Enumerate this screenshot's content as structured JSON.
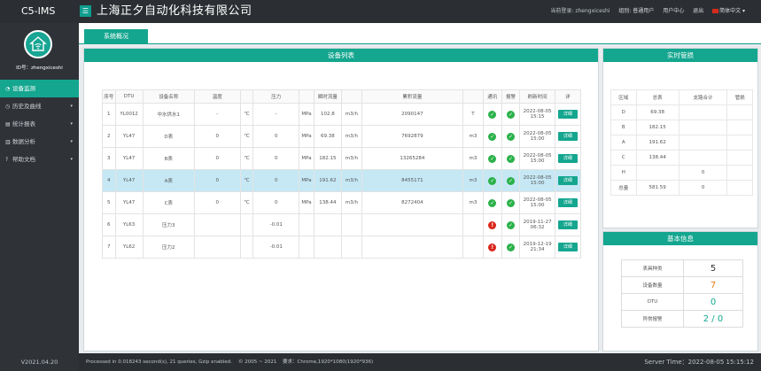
{
  "app": {
    "brand": "C5-IMS",
    "company": "上海正夕自动化科技有限公司",
    "menu_icon": "hamburger-icon"
  },
  "user_bar": {
    "current_login": "当前登录: zhengxiceshi",
    "role": "组别: 普通用户",
    "user_center": "用户中心",
    "logout": "退出",
    "language": "简体中文 ▾"
  },
  "sidebar": {
    "user_line": "ID号：zhengxiceshi",
    "version": "V2021.04.20",
    "items": [
      {
        "icon": "gauge-icon",
        "label": "设备监测",
        "active": true,
        "caret": ""
      },
      {
        "icon": "history-icon",
        "label": "历史及曲线",
        "caret": "▾"
      },
      {
        "icon": "report-icon",
        "label": "统计报表",
        "caret": "▾"
      },
      {
        "icon": "chart-icon",
        "label": "数据分析",
        "caret": "▾"
      },
      {
        "icon": "help-icon",
        "label": "帮助文档",
        "caret": "▾"
      }
    ]
  },
  "tab": {
    "label": "系统概况"
  },
  "device_panel": {
    "title": "设备列表",
    "headers": [
      "序号",
      "DTU",
      "设备名称",
      "温度",
      "",
      "压力",
      "",
      "瞬时流量",
      "",
      "累积流量",
      "",
      "通讯",
      "报警",
      "刷新时间",
      "详"
    ],
    "detail_label": "详细",
    "rows": [
      {
        "no": "1",
        "dtu": "YL0012",
        "name": "中水供水1",
        "temp": "-",
        "temp_unit": "℃",
        "pressure": "-",
        "p_unit": "MPa",
        "flow": "102.8",
        "flow_unit": "m3/h",
        "total": "2090147",
        "total_unit": "T",
        "comm": "ok",
        "alarm": "ok",
        "time1": "2022-08-05",
        "time2": "15:15",
        "hl": false
      },
      {
        "no": "2",
        "dtu": "YL47",
        "name": "D表",
        "temp": "0",
        "temp_unit": "℃",
        "pressure": "0",
        "p_unit": "MPa",
        "flow": "69.38",
        "flow_unit": "m3/h",
        "total": "7692879",
        "total_unit": "m3",
        "comm": "ok",
        "alarm": "ok",
        "time1": "2022-08-05",
        "time2": "15:00",
        "hl": false
      },
      {
        "no": "3",
        "dtu": "YL47",
        "name": "B表",
        "temp": "0",
        "temp_unit": "℃",
        "pressure": "0",
        "p_unit": "MPa",
        "flow": "182.15",
        "flow_unit": "m3/h",
        "total": "13265284",
        "total_unit": "m3",
        "comm": "ok",
        "alarm": "ok",
        "time1": "2022-08-05",
        "time2": "15:00",
        "hl": false
      },
      {
        "no": "4",
        "dtu": "YL47",
        "name": "A表",
        "temp": "0",
        "temp_unit": "℃",
        "pressure": "0",
        "p_unit": "MPa",
        "flow": "191.62",
        "flow_unit": "m3/h",
        "total": "8455171",
        "total_unit": "m3",
        "comm": "ok",
        "alarm": "ok",
        "time1": "2022-08-05",
        "time2": "15:00",
        "hl": true
      },
      {
        "no": "5",
        "dtu": "YL47",
        "name": "C表",
        "temp": "0",
        "temp_unit": "℃",
        "pressure": "0",
        "p_unit": "MPa",
        "flow": "138.44",
        "flow_unit": "m3/h",
        "total": "8272404",
        "total_unit": "m3",
        "comm": "ok",
        "alarm": "ok",
        "time1": "2022-08-05",
        "time2": "15:00",
        "hl": false
      },
      {
        "no": "6",
        "dtu": "YL63",
        "name": "压力3",
        "temp": "",
        "temp_unit": "",
        "pressure": "-0.01",
        "p_unit": "",
        "flow": "",
        "flow_unit": "",
        "total": "",
        "total_unit": "",
        "comm": "alarm",
        "alarm": "ok",
        "time1": "2019-11-27",
        "time2": "06:32",
        "hl": false
      },
      {
        "no": "7",
        "dtu": "YL62",
        "name": "压力2",
        "temp": "",
        "temp_unit": "",
        "pressure": "-0.01",
        "p_unit": "",
        "flow": "",
        "flow_unit": "",
        "total": "",
        "total_unit": "",
        "comm": "alarm",
        "alarm": "ok",
        "time1": "2019-12-19",
        "time2": "21:34",
        "hl": false
      }
    ]
  },
  "realtime_panel": {
    "title": "实时管损",
    "headers": [
      "区域",
      "总表",
      "支路合计",
      "管损"
    ],
    "rows": [
      [
        "D",
        "69.38",
        "",
        ""
      ],
      [
        "B",
        "182.15",
        "",
        ""
      ],
      [
        "A",
        "191.62",
        "",
        ""
      ],
      [
        "C",
        "138.44",
        "",
        ""
      ],
      [
        "H",
        "",
        "0",
        ""
      ],
      [
        "总量",
        "581.59",
        "0",
        ""
      ]
    ]
  },
  "info_panel": {
    "title": "基本信息",
    "rows": [
      {
        "label": "表具种类",
        "value": "5",
        "color": "#333333"
      },
      {
        "label": "设备数量",
        "value": "7",
        "color": "#e07b1a"
      },
      {
        "label": "DTU",
        "value": "0",
        "color": "#14a68f"
      },
      {
        "label": "异常报警",
        "value": "2 / 0",
        "color": "#14a68f"
      }
    ]
  },
  "footer": {
    "processed": "Processed in 0.018243 second(s), 21 queries, Gzip enabled.",
    "copyright": "© 2005 ~ 2021",
    "requirement": "要求：Chrome,1920*1080(1920*936)",
    "server_time": "Server Time：2022-08-05 15:15:12"
  }
}
